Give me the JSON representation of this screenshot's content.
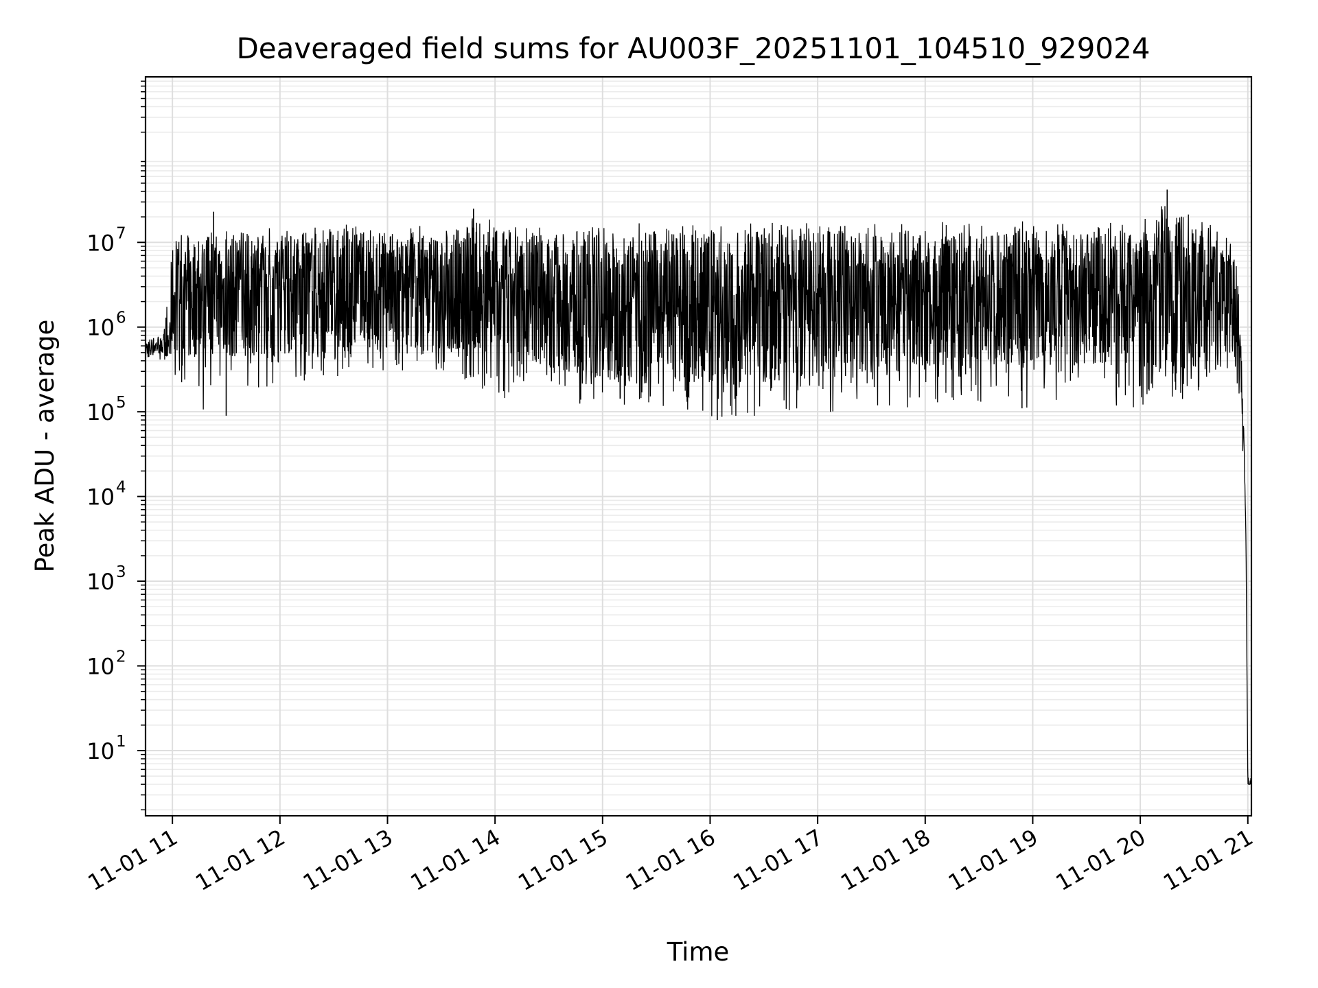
{
  "chart_data": {
    "type": "line",
    "title": "Deaveraged field sums for AU003F_20251101_104510_929024",
    "xlabel": "Time",
    "ylabel": "Peak ADU - average",
    "y_scale": "log",
    "ylim": [
      1.7,
      900000000
    ],
    "xlim": [
      "2025-11-01 10:45",
      "2025-11-01 21:02"
    ],
    "grid": true,
    "line_color": "#000000",
    "x_ticks": [
      "11-01 11",
      "11-01 12",
      "11-01 13",
      "11-01 14",
      "11-01 15",
      "11-01 16",
      "11-01 17",
      "11-01 18",
      "11-01 19",
      "11-01 20",
      "11-01 21"
    ],
    "x_tick_times": [
      "2025-11-01 11:00",
      "2025-11-01 12:00",
      "2025-11-01 13:00",
      "2025-11-01 14:00",
      "2025-11-01 15:00",
      "2025-11-01 16:00",
      "2025-11-01 17:00",
      "2025-11-01 18:00",
      "2025-11-01 19:00",
      "2025-11-01 20:00",
      "2025-11-01 21:00"
    ],
    "y_ticks": [
      {
        "base": "10",
        "exp": "1",
        "value": 10
      },
      {
        "base": "10",
        "exp": "2",
        "value": 100
      },
      {
        "base": "10",
        "exp": "3",
        "value": 1000
      },
      {
        "base": "10",
        "exp": "4",
        "value": 10000
      },
      {
        "base": "10",
        "exp": "5",
        "value": 100000
      },
      {
        "base": "10",
        "exp": "6",
        "value": 1000000
      },
      {
        "base": "10",
        "exp": "7",
        "value": 10000000
      }
    ],
    "series": [
      {
        "x": [
          "2025-11-01 10:45",
          "2025-11-01 10:50",
          "2025-11-01 10:55",
          "2025-11-01 10:58",
          "2025-11-01 11:00",
          "2025-11-01 11:05",
          "2025-11-01 11:10",
          "2025-11-01 11:15",
          "2025-11-01 11:30",
          "2025-11-01 11:45",
          "2025-11-01 12:00",
          "2025-11-01 12:30",
          "2025-11-01 13:00",
          "2025-11-01 13:30",
          "2025-11-01 13:48",
          "2025-11-01 14:00",
          "2025-11-01 14:30",
          "2025-11-01 15:00",
          "2025-11-01 15:30",
          "2025-11-01 16:00",
          "2025-11-01 16:30",
          "2025-11-01 17:00",
          "2025-11-01 17:30",
          "2025-11-01 18:00",
          "2025-11-01 18:30",
          "2025-11-01 19:00",
          "2025-11-01 19:30",
          "2025-11-01 20:00",
          "2025-11-01 20:15",
          "2025-11-01 20:30",
          "2025-11-01 20:45",
          "2025-11-01 20:52",
          "2025-11-01 20:55",
          "2025-11-01 20:57",
          "2025-11-01 20:58",
          "2025-11-01 20:59",
          "2025-11-01 21:00",
          "2025-11-01 21:01",
          "2025-11-01 21:02"
        ],
        "y": [
          550000,
          600000,
          580000,
          620000,
          2200000,
          2500000,
          2000000,
          2600000,
          2300000,
          2400000,
          2500000,
          2400000,
          2600000,
          2500000,
          2700000,
          2300000,
          2100000,
          1800000,
          1700000,
          1600000,
          1700000,
          1800000,
          2000000,
          2100000,
          2200000,
          2300000,
          2200000,
          2400000,
          2600000,
          2300000,
          2400000,
          2200000,
          600000,
          150000,
          30000,
          2800,
          4,
          4,
          4
        ],
        "env_high": [
          750000,
          800000,
          780000,
          3000000,
          11000000,
          16000000,
          15000000,
          15000000,
          16000000,
          15000000,
          16000000,
          17000000,
          16000000,
          17000000,
          25000000,
          17000000,
          16000000,
          18000000,
          17000000,
          16000000,
          17000000,
          17000000,
          17000000,
          18000000,
          17000000,
          18000000,
          17000000,
          18000000,
          42000000,
          18000000,
          16000000,
          11000000,
          3500000,
          300000,
          40000,
          3000,
          5,
          5,
          5
        ],
        "env_low": [
          400000,
          420000,
          400000,
          450000,
          180000,
          200000,
          250000,
          90000,
          150000,
          180000,
          200000,
          250000,
          300000,
          280000,
          160000,
          140000,
          130000,
          120000,
          110000,
          80000,
          90000,
          100000,
          95000,
          120000,
          130000,
          110000,
          140000,
          100000,
          130000,
          150000,
          200000,
          450000,
          100000,
          30000,
          10000,
          2000,
          4,
          4,
          4
        ]
      }
    ]
  }
}
